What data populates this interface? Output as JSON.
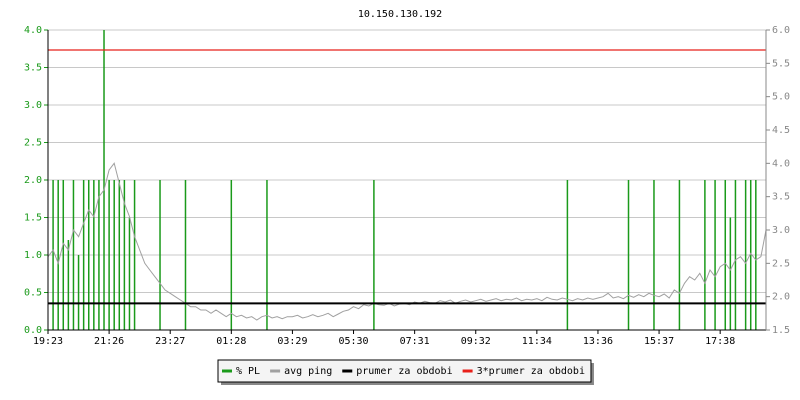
{
  "chart_data": {
    "type": "line",
    "title": "10.150.130.192",
    "categories": [
      "19:23",
      null,
      null,
      null,
      null,
      null,
      null,
      null,
      null,
      null,
      null,
      null,
      "21:26",
      null,
      null,
      null,
      null,
      null,
      null,
      null,
      null,
      null,
      null,
      null,
      "23:27",
      null,
      null,
      null,
      null,
      null,
      null,
      null,
      null,
      null,
      null,
      null,
      "01:28",
      null,
      null,
      null,
      null,
      null,
      null,
      null,
      null,
      null,
      null,
      null,
      "03:29",
      null,
      null,
      null,
      null,
      null,
      null,
      null,
      null,
      null,
      null,
      null,
      "05:30",
      null,
      null,
      null,
      null,
      null,
      null,
      null,
      null,
      null,
      null,
      null,
      "07:31",
      null,
      null,
      null,
      null,
      null,
      null,
      null,
      null,
      null,
      null,
      null,
      "09:32",
      null,
      null,
      null,
      null,
      null,
      null,
      null,
      null,
      null,
      null,
      null,
      "11:34",
      null,
      null,
      null,
      null,
      null,
      null,
      null,
      null,
      null,
      null,
      null,
      "13:36",
      null,
      null,
      null,
      null,
      null,
      null,
      null,
      null,
      null,
      null,
      null,
      "15:37",
      null,
      null,
      null,
      null,
      null,
      null,
      null,
      null,
      null,
      null,
      null,
      "17:38",
      null,
      null,
      null,
      null,
      null,
      null,
      null,
      null,
      null
    ],
    "ylim": [
      0,
      4
    ],
    "yticks": [
      {
        "value": 0,
        "label": "0.0"
      },
      0.5,
      {
        "value": 1,
        "label": "1.0"
      },
      1.5,
      {
        "value": 2,
        "label": "2.0"
      },
      2.5,
      {
        "value": 3,
        "label": "3.0"
      },
      3.5,
      {
        "value": 4,
        "label": "4.0"
      }
    ],
    "y2lim": [
      1.5,
      6
    ],
    "y2ticks": [
      1.5,
      {
        "value": 2,
        "label": "2.0"
      },
      2.5,
      {
        "value": 3,
        "label": "3.0"
      },
      3.5,
      {
        "value": 4,
        "label": "4.0"
      },
      4.5,
      {
        "value": 5,
        "label": "5.0"
      },
      5.5,
      {
        "value": 6,
        "label": "6.0"
      }
    ],
    "grid": true,
    "series": [
      {
        "name": "% PL",
        "color": "#1a9a1a",
        "style": "spikes",
        "values": [
          0,
          2,
          2,
          2,
          1.2,
          2,
          1,
          2,
          2,
          2,
          2,
          4,
          2,
          2,
          2,
          2,
          1.5,
          2,
          0,
          0,
          0,
          0,
          2,
          0,
          0,
          0,
          0,
          2,
          0,
          0,
          0,
          0,
          0,
          0,
          0,
          0,
          2,
          0,
          0,
          0,
          0,
          0,
          0,
          2,
          0,
          0,
          0,
          0,
          0,
          0,
          0,
          0,
          0,
          0,
          0,
          0,
          0,
          0,
          0,
          0,
          0,
          0,
          0,
          0,
          2,
          0,
          0,
          0,
          0,
          0,
          0,
          0,
          0,
          0,
          0,
          0,
          0,
          0,
          0,
          0,
          0,
          0,
          0,
          0,
          0,
          0,
          0,
          0,
          0,
          0,
          0,
          0,
          0,
          0,
          0,
          0,
          0,
          0,
          0,
          0,
          0,
          0,
          2,
          0,
          0,
          0,
          0,
          0,
          0,
          0,
          0,
          0,
          0,
          0,
          2,
          0,
          0,
          0,
          0,
          2,
          0,
          0,
          0,
          0,
          2,
          0,
          0,
          0,
          0,
          2,
          0,
          2,
          0,
          2,
          1.5,
          2,
          0,
          2,
          2,
          2,
          0,
          0
        ]
      },
      {
        "name": "avg ping",
        "color": "#a0a0a0",
        "axis": "y2",
        "values": [
          2.6,
          2.7,
          2.5,
          2.8,
          2.7,
          3.0,
          2.9,
          3.1,
          3.3,
          3.2,
          3.5,
          3.6,
          3.9,
          4.0,
          3.7,
          3.4,
          3.2,
          2.9,
          2.7,
          2.5,
          2.4,
          2.3,
          2.2,
          2.1,
          2.05,
          2.0,
          1.95,
          1.9,
          1.85,
          1.85,
          1.8,
          1.8,
          1.75,
          1.8,
          1.75,
          1.7,
          1.75,
          1.7,
          1.72,
          1.68,
          1.7,
          1.65,
          1.7,
          1.72,
          1.68,
          1.7,
          1.67,
          1.7,
          1.7,
          1.72,
          1.68,
          1.7,
          1.73,
          1.7,
          1.72,
          1.75,
          1.7,
          1.74,
          1.78,
          1.8,
          1.85,
          1.82,
          1.88,
          1.86,
          1.9,
          1.88,
          1.87,
          1.9,
          1.86,
          1.89,
          1.9,
          1.88,
          1.92,
          1.9,
          1.93,
          1.91,
          1.9,
          1.94,
          1.92,
          1.95,
          1.9,
          1.93,
          1.95,
          1.92,
          1.94,
          1.96,
          1.93,
          1.95,
          1.97,
          1.94,
          1.96,
          1.95,
          1.98,
          1.94,
          1.96,
          1.95,
          1.97,
          1.94,
          1.99,
          1.96,
          1.95,
          1.98,
          1.96,
          1.94,
          1.97,
          1.95,
          1.98,
          1.96,
          1.98,
          2.0,
          2.05,
          1.98,
          2.0,
          1.97,
          2.02,
          1.99,
          2.03,
          2.0,
          2.05,
          2.02,
          2.0,
          2.04,
          1.98,
          2.1,
          2.05,
          2.2,
          2.3,
          2.25,
          2.35,
          2.2,
          2.4,
          2.3,
          2.45,
          2.5,
          2.4,
          2.55,
          2.6,
          2.5,
          2.65,
          2.55,
          2.6,
          3.0
        ]
      },
      {
        "name": "prumer za obdobi",
        "color": "#000000",
        "axis": "y2",
        "style": "hline",
        "value": 1.9
      },
      {
        "name": "3*prumer za obdobi",
        "color": "#e8201a",
        "axis": "y2",
        "style": "hline",
        "value": 5.7
      }
    ]
  }
}
